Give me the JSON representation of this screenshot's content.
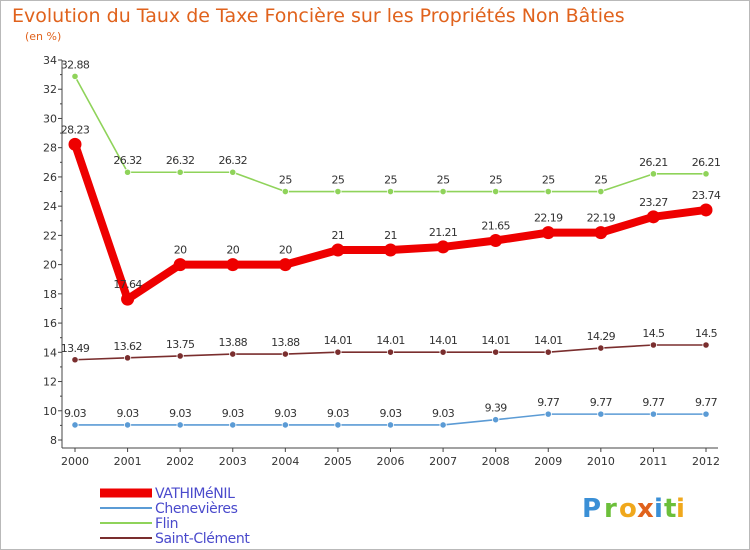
{
  "chart_data": {
    "type": "line",
    "title": "Evolution du Taux de Taxe Foncière sur les Propriétés Non Bâties",
    "subtitle": "(en %)",
    "xlabel": "",
    "ylabel": "",
    "x": [
      "2000",
      "2001",
      "2002",
      "2003",
      "2004",
      "2005",
      "2006",
      "2007",
      "2008",
      "2009",
      "2010",
      "2011",
      "2012"
    ],
    "ylim": [
      8,
      34
    ],
    "yticks": [
      8,
      10,
      12,
      14,
      16,
      18,
      20,
      22,
      24,
      26,
      28,
      30,
      32,
      34
    ],
    "ytick_labels": [
      "8",
      "10",
      "12",
      "14",
      "16",
      "18",
      "20",
      "22",
      "24",
      "26",
      "28",
      "30",
      "32",
      "34"
    ],
    "grid": false,
    "legend_position": "bottom-left",
    "series": [
      {
        "name": "Flin",
        "color": "#8fd35a",
        "values": [
          32.88,
          26.32,
          26.32,
          26.32,
          25,
          25,
          25,
          25,
          25,
          25,
          25,
          26.21,
          26.21
        ],
        "labels": [
          "32.88",
          "26.32",
          "26.32",
          "26.32",
          "25",
          "25",
          "25",
          "25",
          "25",
          "25",
          "25",
          "26.21",
          "26.21"
        ]
      },
      {
        "name": "Saint-Clément",
        "color": "#7a2e2e",
        "values": [
          13.49,
          13.62,
          13.75,
          13.88,
          13.88,
          14.01,
          14.01,
          14.01,
          14.01,
          14.01,
          14.29,
          14.5,
          14.5
        ],
        "labels": [
          "13.49",
          "13.62",
          "13.75",
          "13.88",
          "13.88",
          "14.01",
          "14.01",
          "14.01",
          "14.01",
          "14.01",
          "14.29",
          "14.5",
          "14.5"
        ]
      },
      {
        "name": "Chenevières",
        "color": "#5b9bd5",
        "values": [
          9.03,
          9.03,
          9.03,
          9.03,
          9.03,
          9.03,
          9.03,
          9.03,
          9.39,
          9.77,
          9.77,
          9.77,
          9.77
        ],
        "labels": [
          "9.03",
          "9.03",
          "9.03",
          "9.03",
          "9.03",
          "9.03",
          "9.03",
          "9.03",
          "9.39",
          "9.77",
          "9.77",
          "9.77",
          "9.77"
        ]
      },
      {
        "name": "VATHIMéNIL",
        "color": "#ee0000",
        "values": [
          28.23,
          17.64,
          20,
          20,
          20,
          21,
          21,
          21.21,
          21.65,
          22.19,
          22.19,
          23.27,
          23.74
        ],
        "labels": [
          "28.23",
          "17.64",
          "20",
          "20",
          "20",
          "21",
          "21",
          "21.21",
          "21.65",
          "22.19",
          "22.19",
          "23.27",
          "23.74"
        ]
      }
    ],
    "legend": [
      "VATHIMéNIL",
      "Chenevières",
      "Flin",
      "Saint-Clément"
    ]
  },
  "logo": {
    "letters": [
      "P",
      "r",
      "o",
      "x",
      "i",
      "t",
      "i"
    ],
    "colors": [
      "#3a8fd6",
      "#6cbf3a",
      "#f0a81c",
      "#e0621c",
      "#3a8fd6",
      "#6cbf3a",
      "#f0a81c"
    ]
  }
}
